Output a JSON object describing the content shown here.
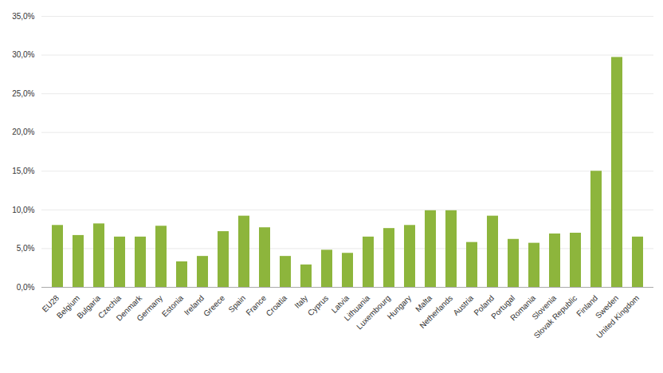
{
  "chart_data": {
    "type": "bar",
    "categories": [
      "EU28",
      "Belgium",
      "Bulgaria",
      "Czechia",
      "Denmark",
      "Germany",
      "Estonia",
      "Ireland",
      "Greece",
      "Spain",
      "France",
      "Croatia",
      "Italy",
      "Cyprus",
      "Latvia",
      "Lithuania",
      "Luxembourg",
      "Hungary",
      "Malta",
      "Netherlands",
      "Austria",
      "Poland",
      "Portugal",
      "Romania",
      "Slovenia",
      "Slovak Republic",
      "Finland",
      "Sweden",
      "United Kingdom"
    ],
    "values": [
      8.0,
      6.7,
      8.2,
      6.5,
      6.5,
      7.9,
      3.3,
      4.0,
      7.2,
      9.2,
      7.7,
      4.0,
      2.9,
      4.8,
      4.4,
      6.5,
      7.6,
      8.0,
      9.9,
      9.9,
      5.8,
      9.2,
      6.2,
      5.7,
      6.9,
      7.0,
      15.0,
      29.7,
      6.5
    ],
    "color": "#8db53c",
    "ylim": [
      0,
      35
    ],
    "yticks": [
      {
        "value": 0,
        "label": "0,0%"
      },
      {
        "value": 5,
        "label": "5,0%"
      },
      {
        "value": 10,
        "label": "10,0%"
      },
      {
        "value": 15,
        "label": "15,0%"
      },
      {
        "value": 20,
        "label": "20,0%"
      },
      {
        "value": 25,
        "label": "25,0%"
      },
      {
        "value": 30,
        "label": "30,0%"
      },
      {
        "value": 35,
        "label": "35,0%"
      }
    ],
    "grid": true
  }
}
